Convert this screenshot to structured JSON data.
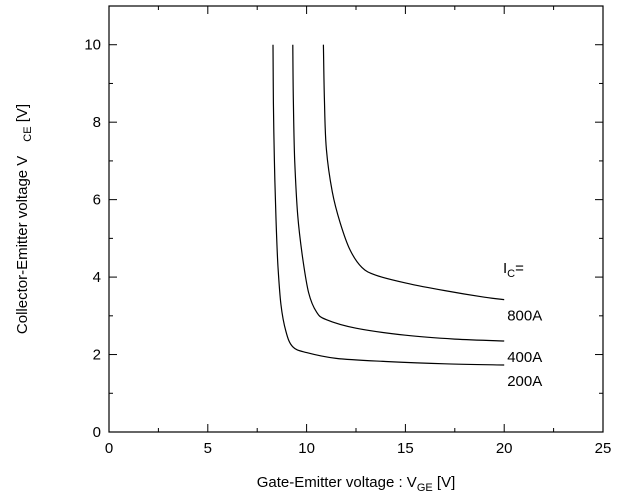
{
  "chart_data": {
    "type": "line",
    "xlabel_main": "Gate-Emitter voltage : V",
    "xlabel_sub": "GE",
    "xlabel_unit": " [V]",
    "ylabel_main": "Collector-Emitter voltage V",
    "ylabel_sub": "CE",
    "ylabel_unit": " [V]",
    "xlim": [
      0,
      25
    ],
    "ylim": [
      0,
      11
    ],
    "x_ticks": [
      0,
      5,
      10,
      15,
      20,
      25
    ],
    "x_tick_labels": [
      "0",
      "5",
      "10",
      "15",
      "20",
      "25"
    ],
    "y_ticks": [
      0,
      2,
      4,
      6,
      8,
      10
    ],
    "y_tick_labels": [
      "0",
      "2",
      "4",
      "6",
      "8",
      "10"
    ],
    "legend_header_main": "I",
    "legend_header_sub": "C",
    "legend_header_suffix": "=",
    "series": [
      {
        "name": "800A",
        "points": [
          [
            10.85,
            10.0
          ],
          [
            10.9,
            8.6
          ],
          [
            11.0,
            7.3
          ],
          [
            11.3,
            6.2
          ],
          [
            11.7,
            5.4
          ],
          [
            12.2,
            4.7
          ],
          [
            12.8,
            4.25
          ],
          [
            13.5,
            4.05
          ],
          [
            15.0,
            3.85
          ],
          [
            17.0,
            3.65
          ],
          [
            19.0,
            3.48
          ],
          [
            20.0,
            3.42
          ]
        ]
      },
      {
        "name": "400A",
        "points": [
          [
            9.3,
            10.0
          ],
          [
            9.33,
            8.5
          ],
          [
            9.4,
            7.0
          ],
          [
            9.55,
            5.6
          ],
          [
            9.8,
            4.5
          ],
          [
            10.1,
            3.6
          ],
          [
            10.5,
            3.1
          ],
          [
            11.0,
            2.9
          ],
          [
            12.5,
            2.68
          ],
          [
            15.0,
            2.5
          ],
          [
            17.5,
            2.4
          ],
          [
            20.0,
            2.35
          ]
        ]
      },
      {
        "name": "200A",
        "points": [
          [
            8.3,
            10.0
          ],
          [
            8.32,
            8.5
          ],
          [
            8.37,
            7.0
          ],
          [
            8.45,
            5.5
          ],
          [
            8.55,
            4.3
          ],
          [
            8.7,
            3.3
          ],
          [
            8.95,
            2.6
          ],
          [
            9.3,
            2.2
          ],
          [
            10.0,
            2.05
          ],
          [
            11.5,
            1.9
          ],
          [
            14.0,
            1.82
          ],
          [
            17.0,
            1.76
          ],
          [
            20.0,
            1.73
          ]
        ]
      }
    ]
  }
}
